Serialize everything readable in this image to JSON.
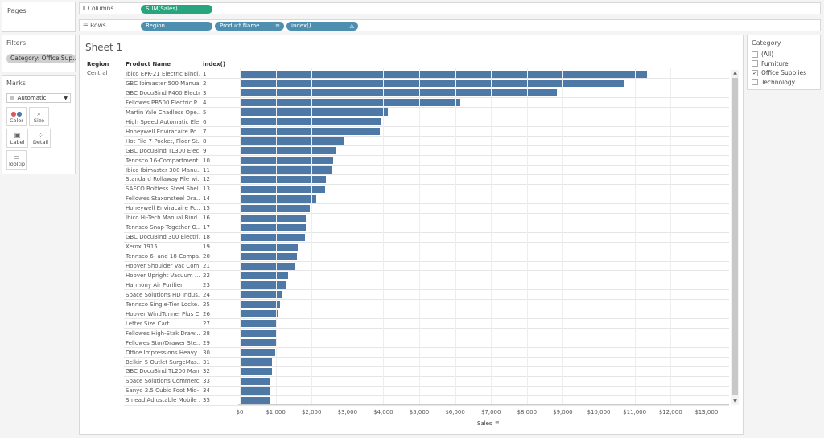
{
  "pages": {
    "title": "Pages"
  },
  "filters": {
    "title": "Filters",
    "pill": "Category: Office Sup..."
  },
  "marks": {
    "title": "Marks",
    "type": "Automatic",
    "type_icon": "bar-chart-icon",
    "buttons": [
      {
        "label": "Color",
        "icon": "color-icon"
      },
      {
        "label": "Size",
        "icon": "size-icon"
      },
      {
        "label": "Label",
        "icon": "label-icon"
      },
      {
        "label": "Detail",
        "icon": "detail-icon"
      },
      {
        "label": "Tooltip",
        "icon": "tooltip-icon"
      }
    ]
  },
  "shelves": {
    "columns_label": "Columns",
    "rows_label": "Rows",
    "columns_pills": [
      "SUM(Sales)"
    ],
    "rows_pills": [
      "Region",
      "Product Name",
      "index()"
    ]
  },
  "sheet": {
    "title": "Sheet 1",
    "header_region": "Region",
    "header_product": "Product Name",
    "header_index": "index()",
    "region_value": "Central"
  },
  "category_filter": {
    "title": "Category",
    "items": [
      {
        "label": "(All)",
        "checked": false
      },
      {
        "label": "Furniture",
        "checked": false
      },
      {
        "label": "Office Supplies",
        "checked": true
      },
      {
        "label": "Technology",
        "checked": false
      }
    ]
  },
  "colors": {
    "bar": "#4e79a7",
    "pill_green": "#26a57f",
    "pill_blue": "#4e8fb0"
  },
  "chart_data": {
    "type": "bar",
    "orientation": "horizontal",
    "xlabel": "Sales",
    "xlim": [
      0,
      13500
    ],
    "x_ticks": [
      "$0",
      "$1,000",
      "$2,000",
      "$3,000",
      "$4,000",
      "$5,000",
      "$6,000",
      "$7,000",
      "$8,000",
      "$9,000",
      "$10,000",
      "$11,000",
      "$12,000",
      "$13,000"
    ],
    "x_tick_values": [
      0,
      1000,
      2000,
      3000,
      4000,
      5000,
      6000,
      7000,
      8000,
      9000,
      10000,
      11000,
      12000,
      13000
    ],
    "categories": [
      "Ibico EPK-21 Electric Bindi...",
      "GBC Ibimaster 500 Manua...",
      "GBC DocuBind P400 Electr...",
      "Fellowes PB500 Electric P...",
      "Martin Yale Chadless Ope...",
      "High Speed Automatic Ele...",
      "Honeywell Enviracaire Po...",
      "Hot File 7-Pocket, Floor St...",
      "GBC DocuBind TL300 Elec...",
      "Tennsco 16-Compartment...",
      "Ibico Ibimaster 300 Manu...",
      "Standard Rollaway File wi...",
      "SAFCO Boltless Steel Shel...",
      "Fellowes Staxonsteel Dra...",
      "Honeywell Enviracaire Po...",
      "Ibico Hi-Tech Manual Bind...",
      "Tennsco Snap-Together O...",
      "GBC DocuBind 300 Electri...",
      "Xerox 1915",
      "Tennsco 6- and 18-Compa...",
      "Hoover Shoulder Vac Com...",
      "Hoover Upright Vacuum ...",
      "Harmony Air Purifier",
      "Space Solutions HD Indus...",
      "Tennsco Single-Tier Locke...",
      "Hoover WindTunnel Plus C...",
      "Letter Size Cart",
      "Fellowes High-Stak Draw...",
      "Fellowes Stor/Drawer Ste...",
      "Office Impressions Heavy ...",
      "Belkin 5 Outlet SurgeMas...",
      "GBC DocuBind TL200 Man...",
      "Space Solutions Commerc...",
      "Sanyo 2.5 Cubic Foot Mid-...",
      "Smead Adjustable Mobile ..."
    ],
    "index": [
      1,
      2,
      3,
      4,
      5,
      6,
      7,
      8,
      9,
      10,
      11,
      12,
      13,
      14,
      15,
      16,
      17,
      18,
      19,
      20,
      21,
      22,
      23,
      24,
      25,
      26,
      27,
      28,
      29,
      30,
      31,
      32,
      33,
      34,
      35
    ],
    "values": [
      11350,
      10690,
      8830,
      6150,
      4130,
      3920,
      3900,
      2920,
      2690,
      2590,
      2580,
      2390,
      2370,
      2140,
      1940,
      1840,
      1830,
      1810,
      1620,
      1600,
      1520,
      1340,
      1310,
      1190,
      1130,
      1080,
      1040,
      1040,
      1000,
      990,
      900,
      900,
      860,
      830,
      830
    ]
  }
}
